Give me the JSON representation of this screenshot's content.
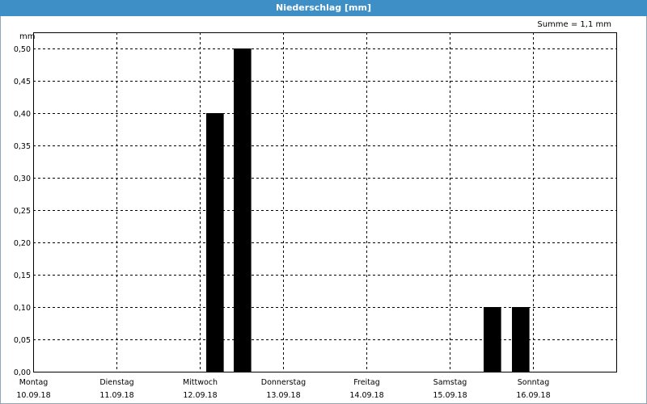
{
  "window": {
    "title": "Niederschlag [mm]"
  },
  "summary": "Summe = 1,1 mm",
  "chart_data": {
    "type": "bar",
    "yunit": "mm",
    "ylim": [
      0,
      0.5
    ],
    "yticks": [
      0.0,
      0.05,
      0.1,
      0.15,
      0.2,
      0.25,
      0.3,
      0.35,
      0.4,
      0.45,
      0.5
    ],
    "ytick_labels": [
      "0,00",
      "0,05",
      "0,10",
      "0,15",
      "0,20",
      "0,25",
      "0,30",
      "0,35",
      "0,40",
      "0,45",
      "0,50"
    ],
    "days": [
      {
        "name": "Montag",
        "date": "10.09.18"
      },
      {
        "name": "Dienstag",
        "date": "11.09.18"
      },
      {
        "name": "Mittwoch",
        "date": "12.09.18"
      },
      {
        "name": "Donnerstag",
        "date": "13.09.18"
      },
      {
        "name": "Freitag",
        "date": "14.09.18"
      },
      {
        "name": "Samstag",
        "date": "15.09.18"
      },
      {
        "name": "Sonntag",
        "date": "16.09.18"
      }
    ],
    "xlim": [
      0,
      7
    ],
    "bars": [
      {
        "x": 2.0,
        "value": 0.4
      },
      {
        "x": 2.33,
        "value": 0.5
      },
      {
        "x": 5.33,
        "value": 0.1
      },
      {
        "x": 5.67,
        "value": 0.1
      }
    ],
    "bar_width": 0.21,
    "bar_color": "#000000",
    "grid": true
  }
}
